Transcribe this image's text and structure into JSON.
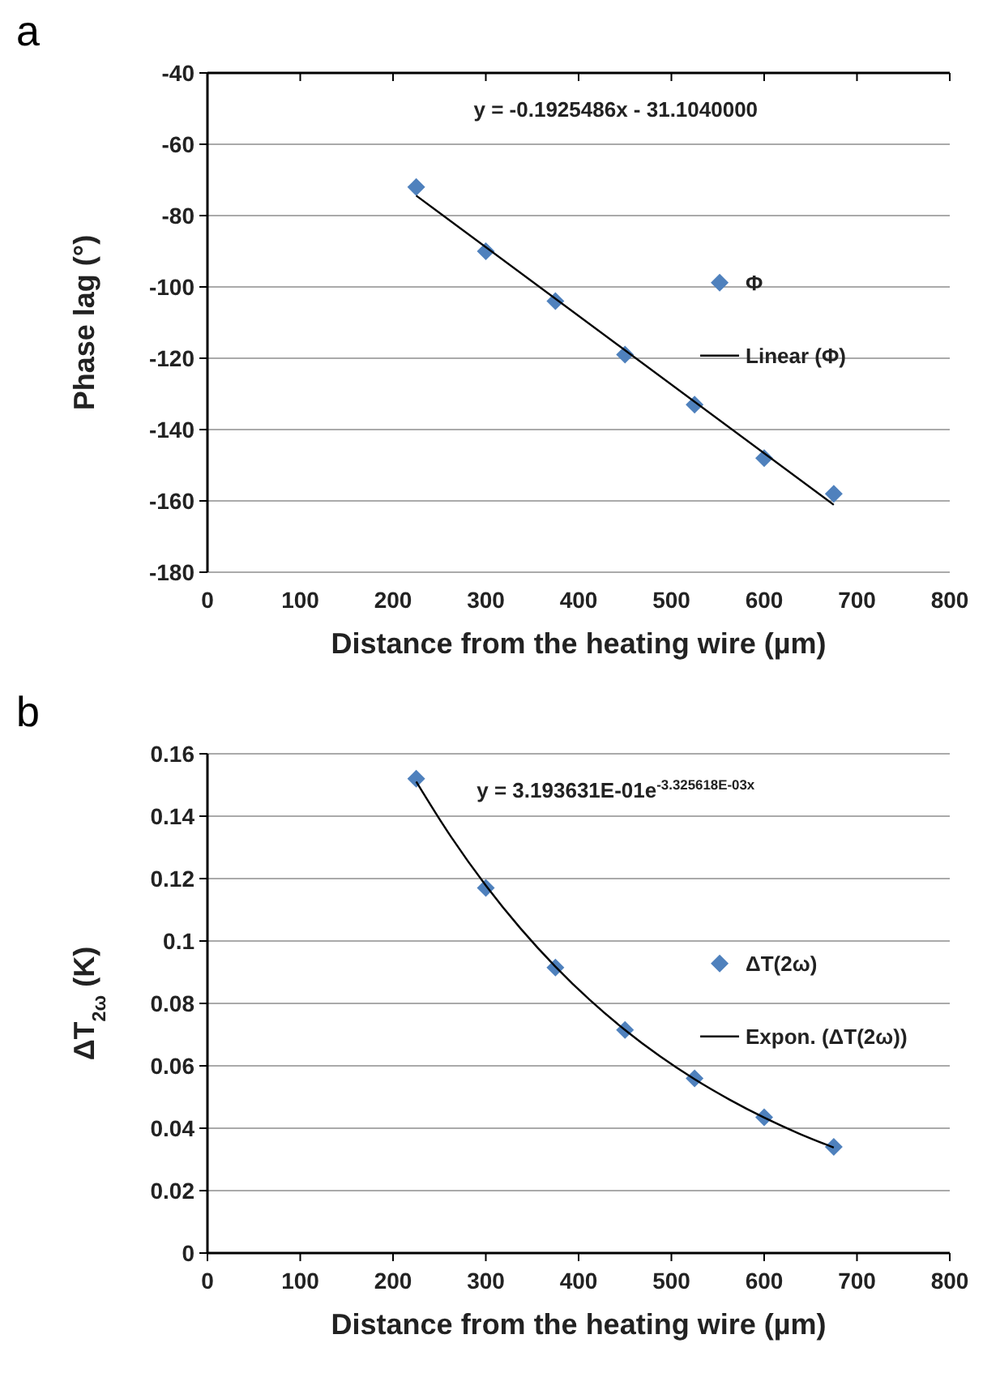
{
  "chart_data": [
    {
      "type": "scatter",
      "title": "a",
      "xlabel": "Distance from the heating wire (µm)",
      "ylabel": "Phase lag (°)",
      "xlim": [
        0,
        800
      ],
      "xticks": [
        0,
        100,
        200,
        300,
        400,
        500,
        600,
        700,
        800
      ],
      "ylim": [
        -180,
        -40
      ],
      "yticks": [
        -180,
        -160,
        -140,
        -120,
        -100,
        -80,
        -60,
        -40
      ],
      "grid": "y",
      "legend": "right",
      "annotations": [
        "y = -0.1925486x - 31.1040000"
      ],
      "series": [
        {
          "name": "Φ",
          "type": "scatter",
          "marker": "diamond",
          "color": "#4f81bd",
          "x": [
            225,
            300,
            375,
            450,
            525,
            600,
            675
          ],
          "values": [
            -72,
            -90,
            -104,
            -119,
            -133,
            -148,
            -158
          ]
        },
        {
          "name": "Linear (Φ)",
          "type": "line",
          "marker": "none",
          "color": "#000000",
          "x": [
            225,
            675
          ],
          "values": [
            -74.4,
            -161.1
          ]
        }
      ]
    },
    {
      "type": "scatter",
      "title": "b",
      "xlabel": "Distance from the heating wire (µm)",
      "ylabel": "ΔT$_{2ω}$ (K)",
      "xlim": [
        0,
        800
      ],
      "xticks": [
        0,
        100,
        200,
        300,
        400,
        500,
        600,
        700,
        800
      ],
      "ylim": [
        0,
        0.16
      ],
      "yticks": [
        0,
        0.02,
        0.04,
        0.06,
        0.08,
        0.1,
        0.12,
        0.14,
        0.16
      ],
      "grid": "y",
      "legend": "right",
      "annotations": [
        "y = 3.193631E-01e$^{-3.325618E-03x}$"
      ],
      "series": [
        {
          "name": "ΔT(2ω)",
          "type": "scatter",
          "marker": "diamond",
          "color": "#4f81bd",
          "x": [
            225,
            300,
            375,
            450,
            525,
            600,
            675
          ],
          "values": [
            0.152,
            0.117,
            0.0915,
            0.0715,
            0.056,
            0.0435,
            0.034
          ]
        },
        {
          "name": "Expon. (ΔT(2ω))",
          "type": "line",
          "marker": "none",
          "color": "#000000",
          "x": [
            225,
            262.5,
            300,
            337.5,
            375,
            412.5,
            450,
            487.5,
            525,
            562.5,
            600,
            637.5,
            675
          ],
          "values": [
            0.1511,
            0.1334,
            0.1178,
            0.104,
            0.0918,
            0.081,
            0.0715,
            0.0631,
            0.0557,
            0.0492,
            0.0434,
            0.0383,
            0.0338
          ]
        }
      ]
    }
  ]
}
